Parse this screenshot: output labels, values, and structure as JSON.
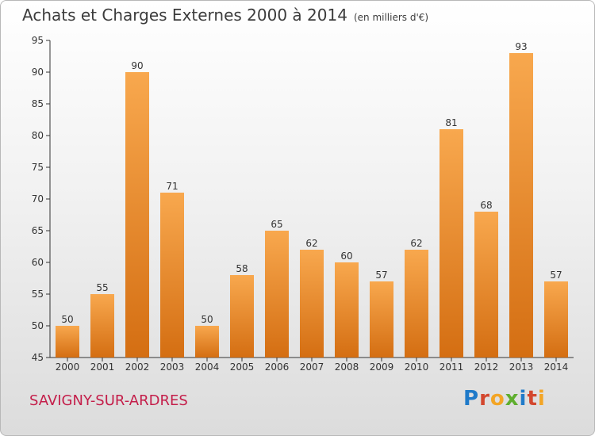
{
  "title": "Achats et Charges Externes 2000 à 2014",
  "unit_note": "(en milliers d'€)",
  "place": "SAVIGNY-SUR-ARDRES",
  "logo": {
    "text": "Proxiti",
    "colors": [
      "#1f7ac9",
      "#d3472e",
      "#f3a526",
      "#5fae2e",
      "#1f7ac9",
      "#d3472e",
      "#f3a526"
    ]
  },
  "chart_data": {
    "type": "bar",
    "categories": [
      "2000",
      "2001",
      "2002",
      "2003",
      "2004",
      "2005",
      "2006",
      "2007",
      "2008",
      "2009",
      "2010",
      "2011",
      "2012",
      "2013",
      "2014"
    ],
    "values": [
      50,
      55,
      90,
      71,
      50,
      58,
      65,
      62,
      60,
      57,
      62,
      81,
      68,
      93,
      57
    ],
    "ylim": [
      45,
      95
    ],
    "yticks": [
      45,
      50,
      55,
      60,
      65,
      70,
      75,
      80,
      85,
      90,
      95
    ],
    "grid": false,
    "bar_color_top": "#f8a84e",
    "bar_color_bottom": "#d46e12"
  }
}
